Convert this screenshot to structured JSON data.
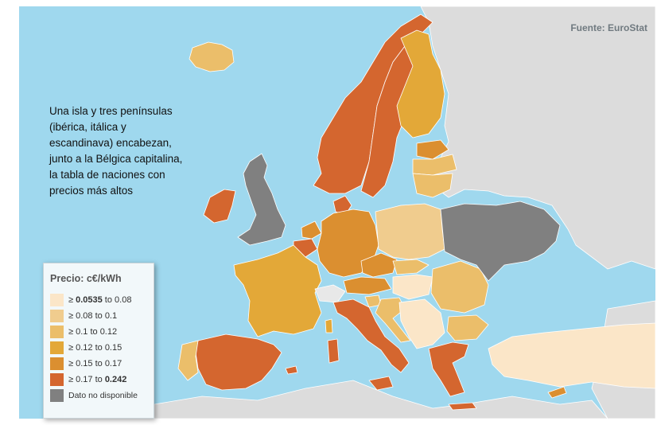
{
  "source": "Fuente: EuroStat",
  "caption": "Una isla y tres penínsulas (ibérica, itálica y escandinava) encabezan, junto a la Bélgica capitalina, la tabla de naciones con precios más altos",
  "legend": {
    "title": "Precio: c€/kWh",
    "items": [
      {
        "prefix": "≥ ",
        "low": "0.0535",
        "mid": " to ",
        "high": "0.08",
        "low_bold": true,
        "high_bold": false,
        "color": "#fbe6c8"
      },
      {
        "prefix": "≥ ",
        "low": "0.08",
        "mid": " to ",
        "high": "0.1",
        "low_bold": false,
        "high_bold": false,
        "color": "#f0cc8e"
      },
      {
        "prefix": "≥ ",
        "low": "0.1",
        "mid": " to ",
        "high": "0.12",
        "low_bold": false,
        "high_bold": false,
        "color": "#ebbe6a"
      },
      {
        "prefix": "≥ ",
        "low": "0.12",
        "mid": " to ",
        "high": "0.15",
        "low_bold": false,
        "high_bold": false,
        "color": "#e3a838"
      },
      {
        "prefix": "≥ ",
        "low": "0.15",
        "mid": " to ",
        "high": "0.17",
        "low_bold": false,
        "high_bold": false,
        "color": "#db8f30"
      },
      {
        "prefix": "≥ ",
        "low": "0.17",
        "mid": " to ",
        "high": "0.242",
        "low_bold": false,
        "high_bold": true,
        "color": "#d4662f"
      }
    ],
    "na": {
      "label": "Dato no disponible",
      "color": "#808080"
    }
  },
  "colors": {
    "sea": "#9fd8ee",
    "non_eu_land": "#dcdcdc",
    "c1": "#fbe6c8",
    "c2": "#f0cc8e",
    "c3": "#ebbe6a",
    "c4": "#e3a838",
    "c5": "#db8f30",
    "c6": "#d4662f",
    "na": "#808080",
    "ch": "#e8e8e8"
  }
}
